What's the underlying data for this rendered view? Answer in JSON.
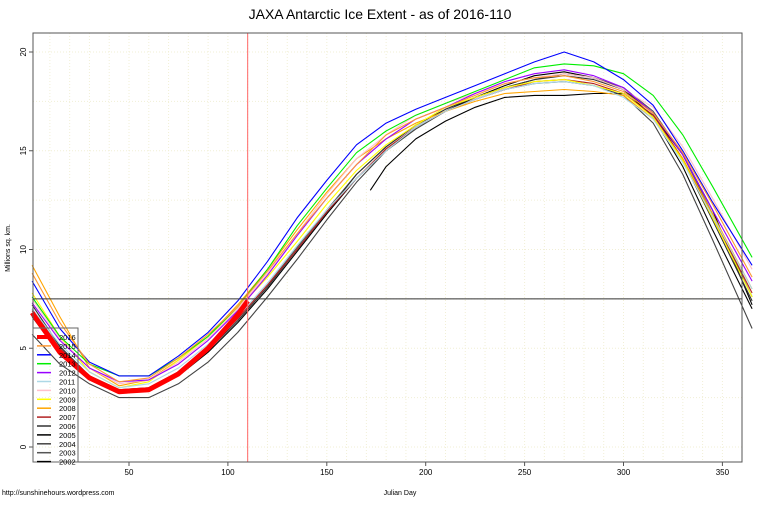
{
  "chart_data": {
    "type": "line",
    "title": "JAXA Antarctic Ice Extent - as of 2016-110",
    "xlabel": "Julian Day",
    "ylabel": "Millions sq. km.",
    "footer": "http://sunshinehours.wordpress.com",
    "xlim": [
      1,
      366
    ],
    "ylim": [
      -0.6,
      21.0
    ],
    "xticks": [
      50,
      100,
      150,
      200,
      250,
      300,
      350
    ],
    "yticks": [
      0,
      5,
      10,
      15,
      20
    ],
    "grid": true,
    "legend_position": "bottom-left",
    "reference_lines": {
      "horizontal_value": 7.5,
      "vertical_day": 110,
      "vertical_color": "#ff6666"
    },
    "x": [
      1,
      15,
      30,
      45,
      60,
      75,
      90,
      105,
      120,
      135,
      150,
      165,
      180,
      195,
      210,
      225,
      240,
      255,
      270,
      285,
      300,
      315,
      330,
      345,
      365
    ],
    "series": [
      {
        "name": "2016",
        "color": "#ff0000",
        "thick": true,
        "x": [
          1,
          15,
          30,
          45,
          60,
          75,
          90,
          105,
          110
        ],
        "values": [
          6.8,
          4.8,
          3.5,
          2.8,
          2.9,
          3.7,
          5.0,
          6.7,
          7.4
        ]
      },
      {
        "name": "2015",
        "color": "#ff9933",
        "values": [
          8.8,
          6.3,
          4.2,
          3.3,
          3.5,
          4.5,
          5.7,
          7.1,
          8.9,
          10.8,
          12.6,
          14.3,
          15.8,
          16.6,
          17.2,
          17.8,
          18.4,
          18.7,
          18.8,
          18.5,
          18.0,
          16.9,
          14.9,
          12.3,
          8.6
        ]
      },
      {
        "name": "2014",
        "color": "#0000ff",
        "values": [
          8.4,
          6.0,
          4.3,
          3.6,
          3.6,
          4.6,
          5.8,
          7.4,
          9.4,
          11.6,
          13.5,
          15.3,
          16.4,
          17.1,
          17.7,
          18.3,
          18.9,
          19.5,
          20.0,
          19.5,
          18.6,
          17.3,
          15.0,
          12.4,
          9.2
        ]
      },
      {
        "name": "2013",
        "color": "#00ee00",
        "values": [
          7.6,
          5.6,
          4.2,
          3.6,
          3.6,
          4.5,
          5.6,
          7.1,
          9.0,
          11.2,
          13.1,
          14.9,
          16.0,
          16.8,
          17.4,
          18.0,
          18.6,
          19.2,
          19.4,
          19.3,
          18.9,
          17.8,
          15.8,
          13.2,
          9.6
        ]
      },
      {
        "name": "2012",
        "color": "#9900ff",
        "values": [
          7.3,
          5.4,
          4.0,
          3.3,
          3.4,
          4.2,
          5.4,
          6.9,
          8.7,
          10.7,
          12.6,
          14.3,
          15.6,
          16.6,
          17.2,
          17.9,
          18.5,
          18.9,
          19.1,
          18.8,
          18.2,
          16.9,
          14.8,
          12.0,
          8.4
        ]
      },
      {
        "name": "2011",
        "color": "#add8e6",
        "values": [
          7.0,
          5.2,
          3.8,
          3.0,
          3.2,
          4.0,
          5.2,
          6.6,
          8.3,
          10.2,
          12.0,
          13.6,
          15.0,
          16.2,
          17.0,
          17.6,
          18.1,
          18.4,
          18.5,
          18.3,
          17.7,
          16.6,
          14.4,
          11.7,
          8.0
        ]
      },
      {
        "name": "2010",
        "color": "#ffc0cb",
        "values": [
          7.5,
          5.5,
          4.0,
          3.2,
          3.4,
          4.3,
          5.5,
          7.0,
          8.8,
          10.8,
          12.8,
          14.6,
          15.8,
          16.8,
          17.4,
          17.9,
          18.4,
          18.7,
          18.9,
          18.7,
          18.1,
          17.2,
          15.2,
          12.6,
          9.0
        ]
      },
      {
        "name": "2009",
        "color": "#ffff00",
        "values": [
          7.8,
          5.6,
          3.8,
          3.0,
          3.3,
          4.4,
          5.6,
          7.0,
          8.6,
          10.4,
          12.3,
          14.0,
          15.3,
          16.3,
          17.2,
          17.7,
          18.2,
          18.5,
          18.6,
          18.3,
          17.9,
          16.7,
          14.5,
          11.6,
          7.6
        ]
      },
      {
        "name": "2008",
        "color": "#ffa500",
        "values": [
          9.2,
          6.6,
          4.0,
          3.1,
          3.4,
          4.4,
          5.6,
          7.2,
          9.0,
          11.0,
          12.9,
          14.6,
          15.6,
          16.4,
          17.0,
          17.5,
          17.9,
          18.0,
          18.1,
          18.0,
          17.8,
          16.6,
          14.6,
          11.8,
          8.0
        ]
      },
      {
        "name": "2007",
        "color": "#b22222",
        "values": [
          6.9,
          5.0,
          3.6,
          2.9,
          3.0,
          3.8,
          5.0,
          6.5,
          8.2,
          10.0,
          11.9,
          13.6,
          15.1,
          16.2,
          17.0,
          17.6,
          18.1,
          18.5,
          18.6,
          18.4,
          17.9,
          16.8,
          14.6,
          11.7,
          7.8
        ]
      },
      {
        "name": "2006",
        "color": "#333333",
        "values": [
          7.2,
          5.1,
          3.6,
          2.8,
          2.9,
          3.7,
          4.9,
          6.4,
          8.1,
          10.0,
          11.9,
          13.8,
          15.2,
          16.3,
          17.1,
          17.7,
          18.2,
          18.6,
          18.8,
          18.6,
          18.1,
          16.9,
          14.5,
          11.5,
          7.4
        ]
      },
      {
        "name": "2005",
        "color": "#000000",
        "values": [
          6.6,
          4.7,
          3.4,
          2.8,
          2.9,
          3.6,
          4.8,
          6.3,
          8.0,
          9.9,
          11.8,
          13.6,
          15.0,
          16.2,
          17.0,
          17.7,
          18.3,
          18.8,
          19.0,
          18.7,
          18.1,
          16.7,
          14.2,
          11.0,
          7.0
        ]
      },
      {
        "name": "2004",
        "color": "#444444",
        "values": [
          5.7,
          4.2,
          3.2,
          2.5,
          2.5,
          3.2,
          4.3,
          5.8,
          7.6,
          9.5,
          11.5,
          13.4,
          15.0,
          16.1,
          17.0,
          17.6,
          18.1,
          18.4,
          18.5,
          18.3,
          17.8,
          16.4,
          13.8,
          10.5,
          6.0
        ]
      },
      {
        "name": "2003",
        "color": "#555555",
        "values": [
          7.0,
          5.0,
          3.6,
          2.9,
          3.0,
          3.8,
          5.0,
          6.5,
          8.2,
          10.1,
          12.0,
          13.8,
          15.2,
          16.3,
          17.1,
          17.7,
          18.2,
          18.6,
          18.9,
          18.7,
          18.2,
          17.0,
          14.8,
          11.8,
          7.6
        ]
      },
      {
        "name": "2002",
        "color": "#000000",
        "x": [
          172,
          180,
          195,
          210,
          225,
          240,
          255,
          270,
          285,
          300,
          315,
          330,
          345,
          365
        ],
        "values": [
          13.0,
          14.2,
          15.6,
          16.5,
          17.2,
          17.7,
          17.8,
          17.8,
          17.9,
          17.9,
          16.8,
          14.8,
          12.0,
          7.2
        ]
      }
    ]
  }
}
